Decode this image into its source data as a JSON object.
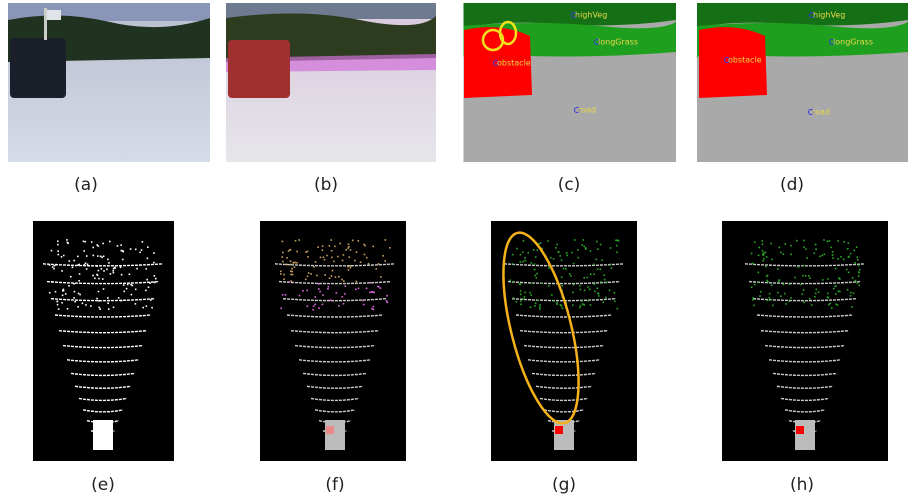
{
  "panels": [
    {
      "label": "(a)"
    },
    {
      "label": "(b)"
    },
    {
      "label": "(c)"
    },
    {
      "label": "(d)"
    },
    {
      "label": "(e)"
    },
    {
      "label": "(f)"
    },
    {
      "label": "(g)"
    },
    {
      "label": "(h)"
    }
  ],
  "segmentation_labels": [
    "highVeg",
    "longGrass",
    "obstacle",
    "road"
  ]
}
